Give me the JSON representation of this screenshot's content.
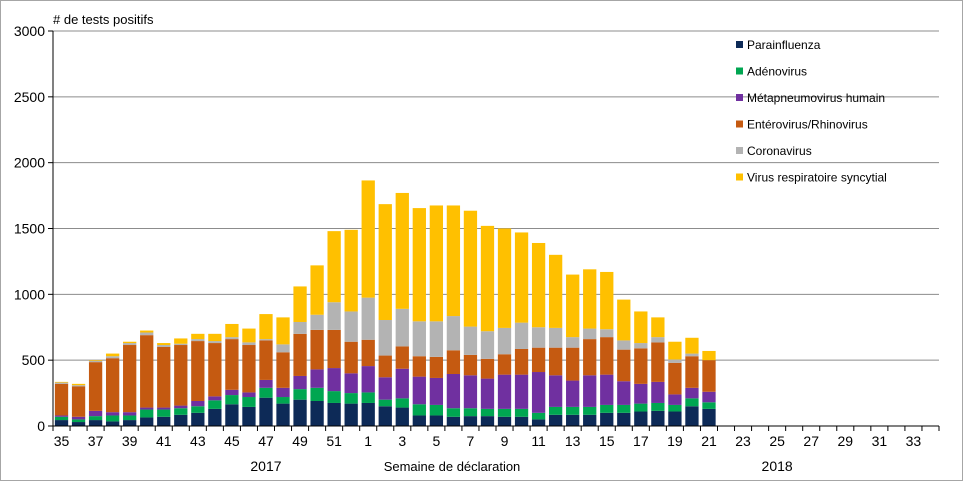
{
  "chart_data": {
    "type": "bar",
    "stacked": true,
    "ylabel": "# de tests positifs",
    "xlabel": "Semaine de déclaration",
    "ylim": [
      0,
      3000
    ],
    "yticks": [
      0,
      500,
      1000,
      1500,
      2000,
      2500,
      3000
    ],
    "grid": "horizontal",
    "legend_position": "top-right",
    "year_labels": [
      {
        "text": "2017",
        "under_week_index": 12
      },
      {
        "text": "2018",
        "under_week_index": 42
      }
    ],
    "categories": [
      "35",
      "36",
      "37",
      "38",
      "39",
      "40",
      "41",
      "42",
      "43",
      "44",
      "45",
      "46",
      "47",
      "48",
      "49",
      "50",
      "51",
      "52",
      "1",
      "2",
      "3",
      "4",
      "5",
      "6",
      "7",
      "8",
      "9",
      "10",
      "11",
      "12",
      "13",
      "14",
      "15",
      "16",
      "17",
      "18",
      "19",
      "20",
      "21",
      "22",
      "23",
      "24",
      "25",
      "26",
      "27",
      "28",
      "29",
      "30",
      "31",
      "32",
      "33",
      "34"
    ],
    "tick_labels": [
      "35",
      "",
      "37",
      "",
      "39",
      "",
      "41",
      "",
      "43",
      "",
      "45",
      "",
      "47",
      "",
      "49",
      "",
      "51",
      "",
      "1",
      "",
      "3",
      "",
      "5",
      "",
      "7",
      "",
      "9",
      "",
      "11",
      "",
      "13",
      "",
      "15",
      "",
      "17",
      "",
      "19",
      "",
      "21",
      "",
      "23",
      "",
      "25",
      "",
      "27",
      "",
      "29",
      "",
      "31",
      "",
      "33",
      ""
    ],
    "series": [
      {
        "name": "Parainfluenza",
        "color": "#0d2a57",
        "values": [
          45,
          30,
          45,
          35,
          45,
          65,
          70,
          85,
          100,
          130,
          165,
          145,
          215,
          170,
          200,
          190,
          175,
          170,
          175,
          150,
          140,
          80,
          80,
          70,
          75,
          75,
          70,
          70,
          50,
          85,
          85,
          85,
          100,
          100,
          110,
          115,
          110,
          150,
          130,
          null,
          null,
          null,
          null,
          null,
          null,
          null,
          null,
          null,
          null,
          null,
          null,
          null
        ]
      },
      {
        "name": "Adénovirus",
        "color": "#00a651",
        "values": [
          25,
          20,
          30,
          45,
          35,
          60,
          55,
          50,
          50,
          65,
          70,
          75,
          75,
          50,
          80,
          100,
          90,
          80,
          80,
          50,
          70,
          85,
          80,
          65,
          60,
          55,
          60,
          60,
          50,
          60,
          60,
          60,
          60,
          60,
          60,
          60,
          50,
          60,
          50,
          null,
          null,
          null,
          null,
          null,
          null,
          null,
          null,
          null,
          null,
          null,
          null,
          null
        ]
      },
      {
        "name": "Métapneumovirus humain",
        "color": "#7030a0",
        "values": [
          10,
          20,
          40,
          25,
          25,
          15,
          15,
          20,
          40,
          30,
          40,
          35,
          60,
          70,
          100,
          140,
          175,
          150,
          200,
          170,
          225,
          210,
          205,
          260,
          250,
          230,
          260,
          260,
          310,
          240,
          200,
          240,
          230,
          180,
          150,
          160,
          80,
          80,
          80,
          null,
          null,
          null,
          null,
          null,
          null,
          null,
          null,
          null,
          null,
          null,
          null,
          null
        ]
      },
      {
        "name": "Entérovirus/Rhinovirus",
        "color": "#c55a11",
        "values": [
          240,
          230,
          370,
          410,
          510,
          550,
          460,
          460,
          455,
          405,
          385,
          360,
          300,
          270,
          320,
          300,
          290,
          240,
          200,
          165,
          170,
          155,
          160,
          180,
          155,
          150,
          155,
          195,
          185,
          210,
          250,
          275,
          285,
          240,
          270,
          300,
          240,
          240,
          240,
          null,
          null,
          null,
          null,
          null,
          null,
          null,
          null,
          null,
          null,
          null,
          null,
          null
        ]
      },
      {
        "name": "Coronavirus",
        "color": "#b3b3b3",
        "values": [
          10,
          10,
          10,
          15,
          15,
          20,
          15,
          10,
          15,
          15,
          15,
          20,
          10,
          60,
          90,
          115,
          210,
          230,
          320,
          270,
          285,
          265,
          270,
          260,
          215,
          210,
          200,
          200,
          155,
          150,
          80,
          80,
          60,
          70,
          40,
          40,
          25,
          20,
          0,
          null,
          null,
          null,
          null,
          null,
          null,
          null,
          null,
          null,
          null,
          null,
          null,
          null
        ]
      },
      {
        "name": "Virus respiratoire syncytial",
        "color": "#ffc000",
        "values": [
          5,
          10,
          5,
          20,
          10,
          15,
          15,
          40,
          40,
          55,
          100,
          105,
          190,
          205,
          270,
          375,
          540,
          620,
          890,
          880,
          880,
          860,
          880,
          840,
          880,
          800,
          755,
          685,
          640,
          555,
          475,
          450,
          435,
          310,
          240,
          150,
          135,
          120,
          70,
          null,
          null,
          null,
          null,
          null,
          null,
          null,
          null,
          null,
          null,
          null,
          null,
          null
        ]
      }
    ]
  }
}
